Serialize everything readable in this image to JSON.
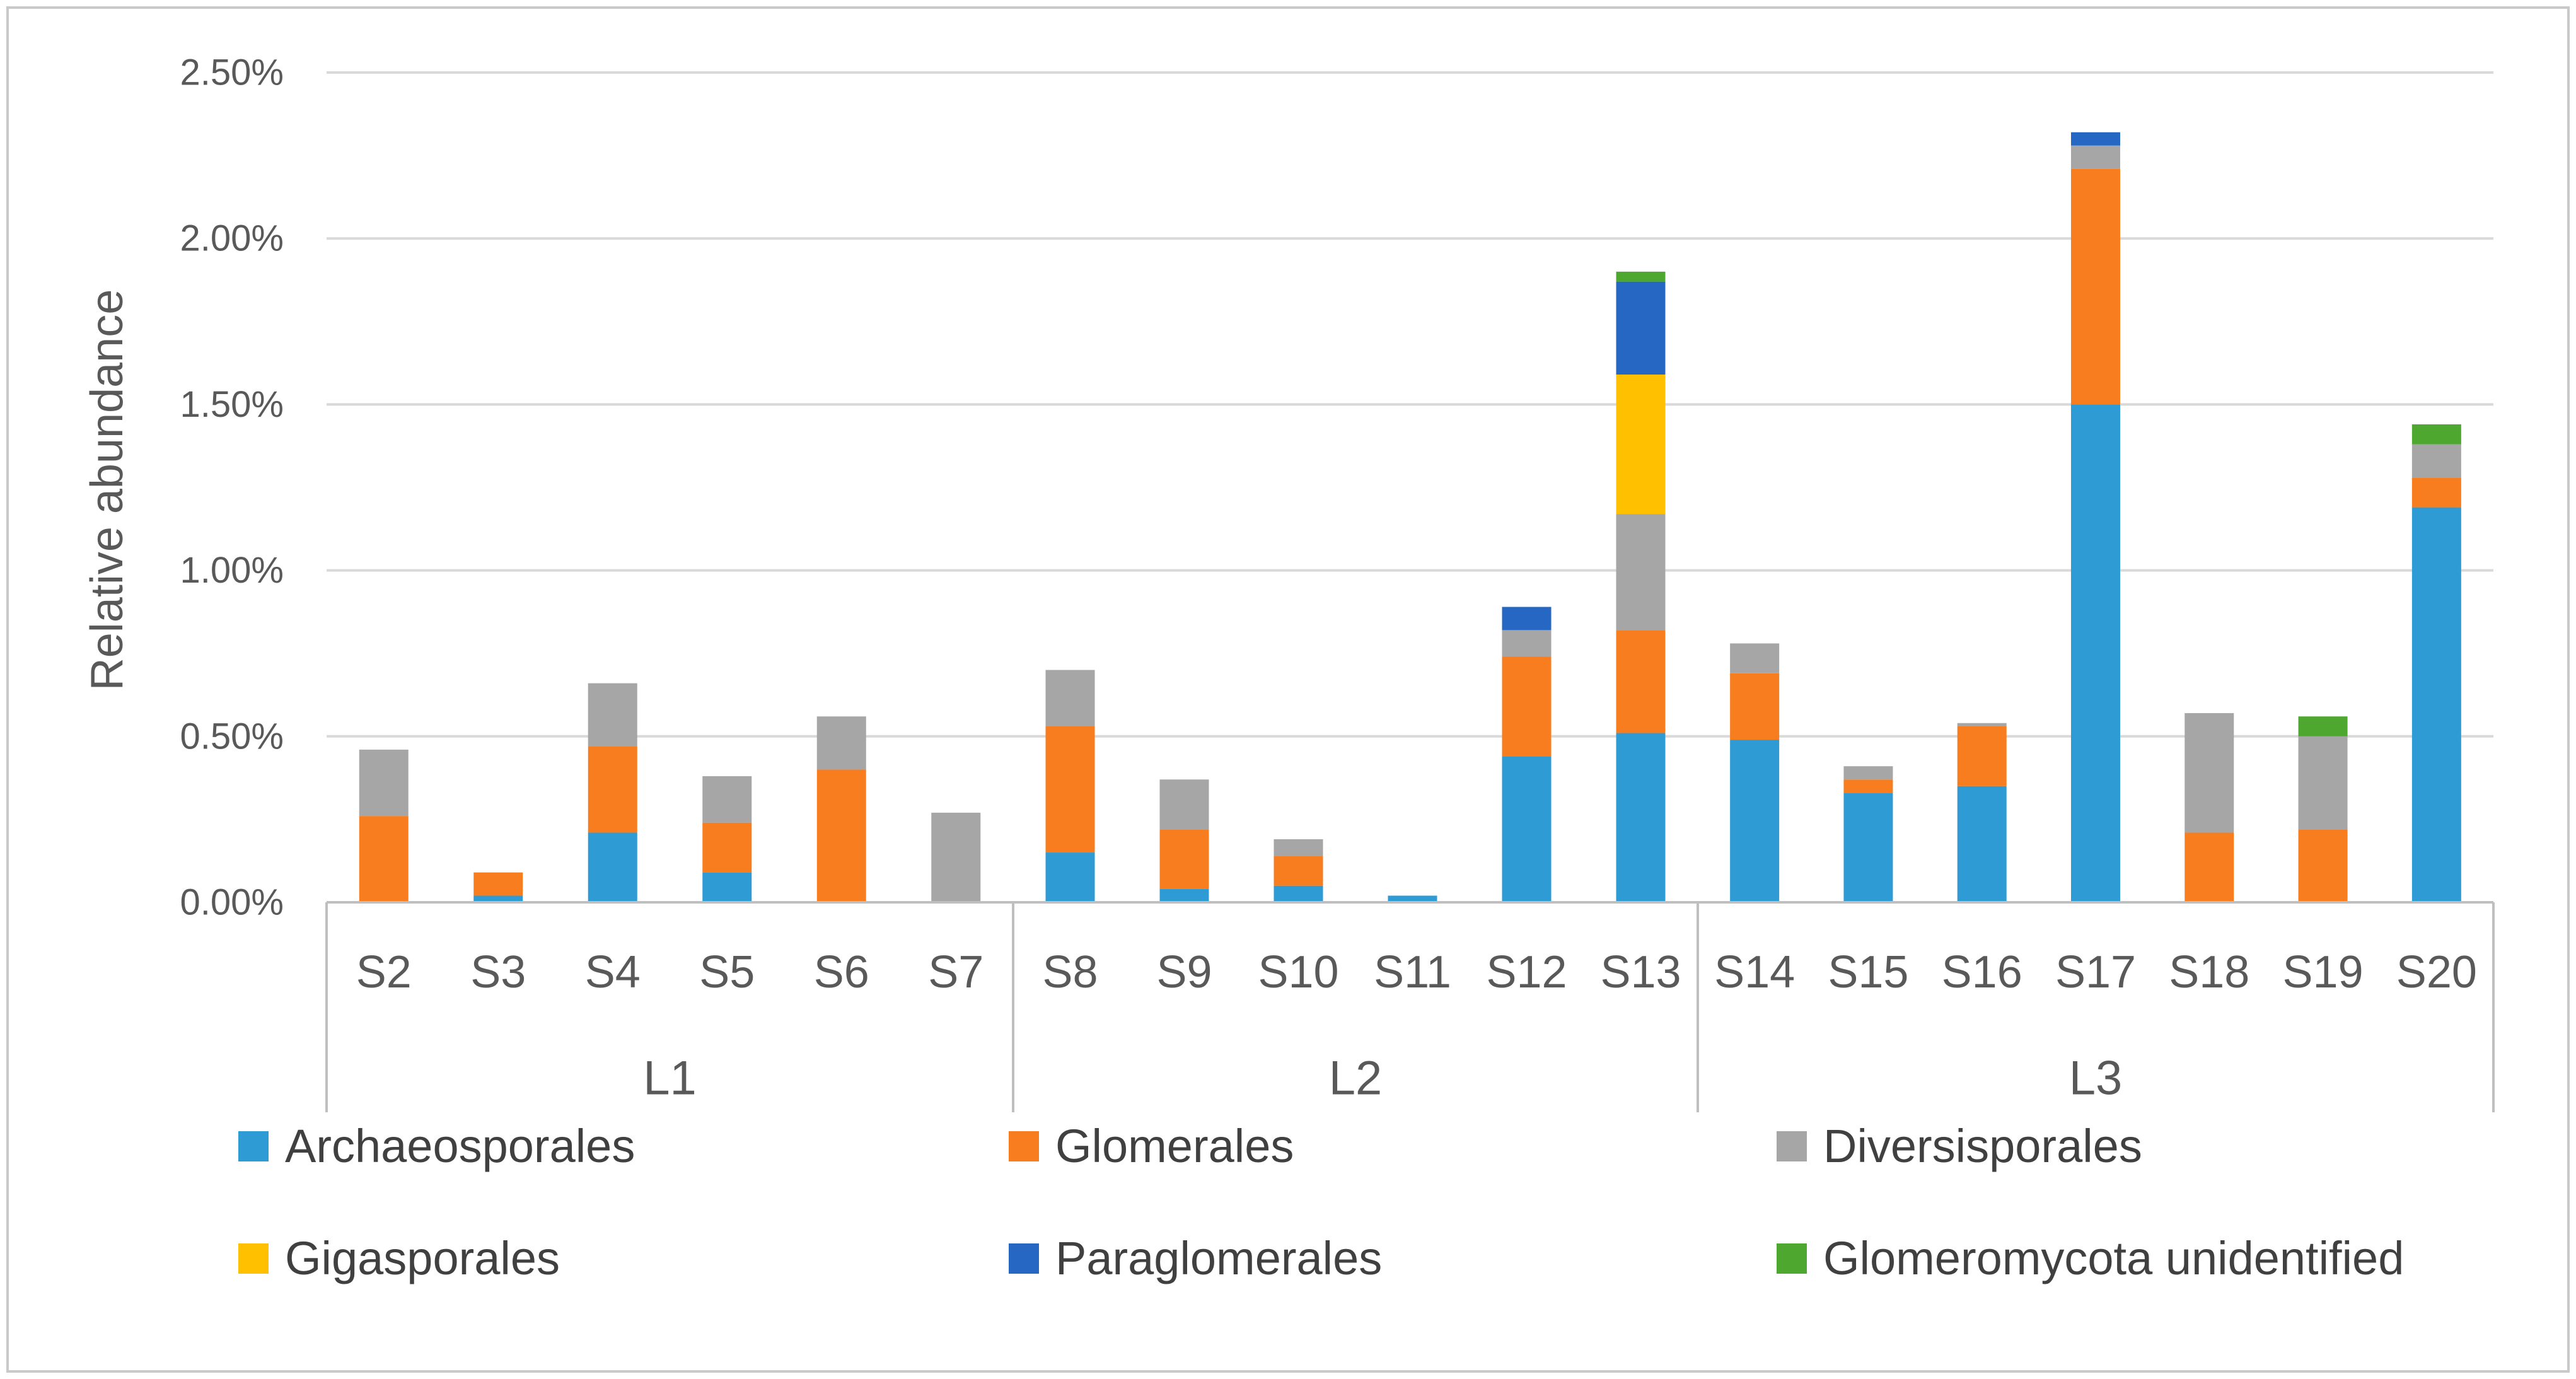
{
  "chart_data": {
    "type": "bar",
    "stacked": true,
    "title": "",
    "xlabel": "",
    "ylabel": "Relative abundance",
    "ylim": [
      0,
      2.5
    ],
    "y_tick_step": 0.5,
    "y_ticks": [
      "0.00%",
      "0.50%",
      "1.00%",
      "1.50%",
      "2.00%",
      "2.50%"
    ],
    "grid": true,
    "legend_position": "bottom",
    "categories": [
      "S2",
      "S3",
      "S4",
      "S5",
      "S6",
      "S7",
      "S8",
      "S9",
      "S10",
      "S11",
      "S12",
      "S13",
      "S14",
      "S15",
      "S16",
      "S17",
      "S18",
      "S19",
      "S20"
    ],
    "groups": [
      {
        "label": "L1",
        "count": 6
      },
      {
        "label": "L2",
        "count": 6
      },
      {
        "label": "L3",
        "count": 7
      }
    ],
    "series": [
      {
        "name": "Archaeosporales",
        "color": "#2E9BD5",
        "values": [
          0,
          0.02,
          0.21,
          0.09,
          0,
          0,
          0.15,
          0.04,
          0.05,
          0.02,
          0.44,
          0.51,
          0.49,
          0.33,
          0.35,
          1.5,
          0,
          0,
          1.19
        ]
      },
      {
        "name": "Glomerales",
        "color": "#F87D1E",
        "values": [
          0.26,
          0.07,
          0.26,
          0.15,
          0.4,
          0,
          0.38,
          0.18,
          0.09,
          0,
          0.3,
          0.31,
          0.2,
          0.04,
          0.18,
          0.71,
          0.21,
          0.22,
          0.09
        ]
      },
      {
        "name": "Diversisporales",
        "color": "#A6A6A6",
        "values": [
          0.2,
          0,
          0.19,
          0.14,
          0.16,
          0.27,
          0.17,
          0.15,
          0.05,
          0,
          0.08,
          0.35,
          0.09,
          0.04,
          0.01,
          0.07,
          0.36,
          0.28,
          0.1
        ]
      },
      {
        "name": "Gigasporales",
        "color": "#FFC000",
        "values": [
          0,
          0,
          0,
          0,
          0,
          0,
          0,
          0,
          0,
          0,
          0,
          0.42,
          0,
          0,
          0,
          0,
          0,
          0,
          0
        ]
      },
      {
        "name": "Paraglomerales",
        "color": "#2767C4",
        "values": [
          0,
          0,
          0,
          0,
          0,
          0,
          0,
          0,
          0,
          0,
          0.07,
          0.28,
          0,
          0,
          0,
          0.04,
          0,
          0,
          0
        ]
      },
      {
        "name": "Glomeromycota unidentified",
        "color": "#4EA72E",
        "values": [
          0,
          0,
          0,
          0,
          0,
          0,
          0,
          0,
          0,
          0,
          0,
          0.03,
          0,
          0,
          0,
          0,
          0,
          0.06,
          0.06
        ]
      }
    ]
  },
  "legend": {
    "rows": [
      [
        "Archaeosporales",
        "Glomerales",
        "Diversisporales"
      ],
      [
        "Gigasporales",
        "Paraglomerales",
        "Glomeromycota unidentified"
      ]
    ]
  },
  "colors": {
    "background": "#FFFFFF",
    "frame_border": "#C9C9C9",
    "gridline": "#D9D9D9",
    "axis_line": "#BFBFBF",
    "axis_text": "#595959",
    "legend_text": "#404040"
  }
}
